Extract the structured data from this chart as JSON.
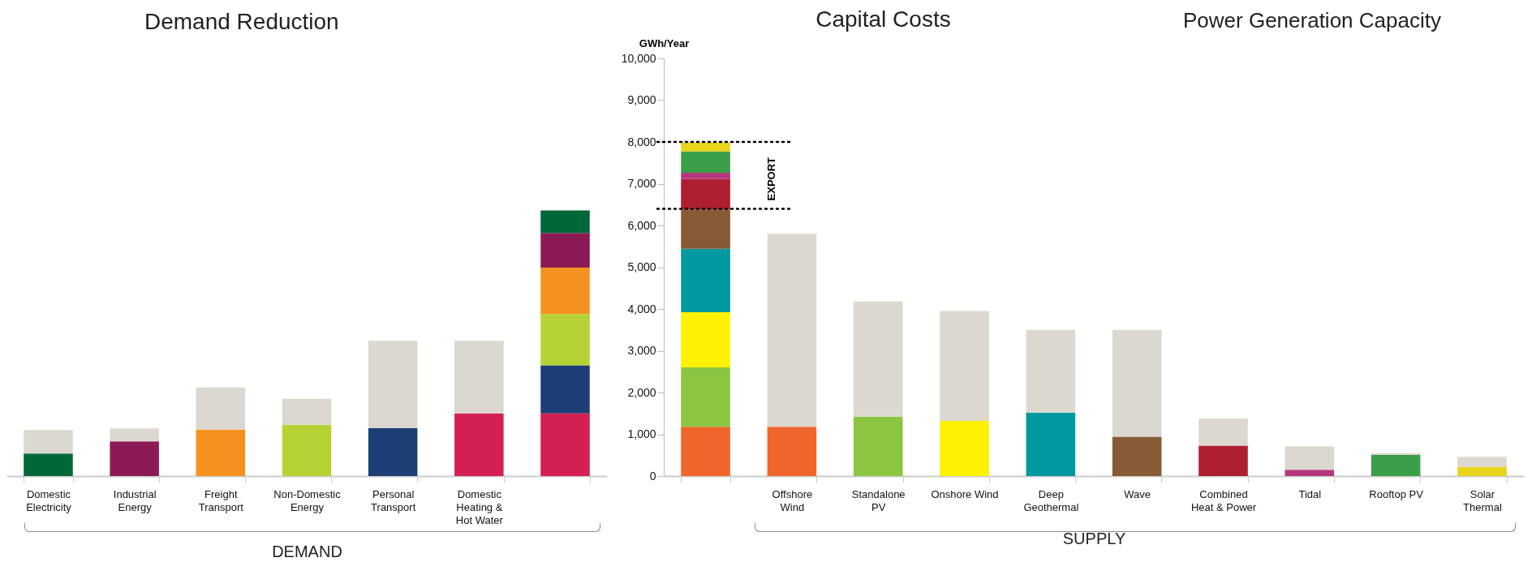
{
  "chart_data": [
    {
      "type": "bar",
      "title": "Demand Reduction",
      "xlabel": "DEMAND",
      "stacked": true,
      "tick_labels": "x",
      "grid": false,
      "categories": [
        "Domestic Electricity",
        "Industrial Energy",
        "Freight Transport",
        "Non-Domestic Energy",
        "Personal Transport",
        "Domestic Heating & Hot Water",
        null
      ],
      "ylim": [
        0,
        10000
      ],
      "series": [
        {
          "color": "#d41f52",
          "values": [
            null,
            null,
            null,
            null,
            null,
            1500,
            1500
          ]
        },
        {
          "color": "#1d3e75",
          "values": [
            null,
            null,
            null,
            null,
            1150,
            null,
            1150
          ]
        },
        {
          "color": "#b5d334",
          "values": [
            null,
            null,
            null,
            1230,
            null,
            null,
            1230
          ]
        },
        {
          "color": "#f5921f",
          "values": [
            null,
            null,
            1110,
            null,
            null,
            null,
            1110
          ]
        },
        {
          "color": "#8c1b55",
          "values": [
            null,
            830,
            null,
            null,
            null,
            null,
            830
          ]
        },
        {
          "color": "#006838",
          "values": [
            540,
            null,
            null,
            null,
            null,
            null,
            540
          ]
        },
        {
          "color": "#dcd8d0",
          "values": [
            560,
            310,
            1010,
            620,
            2090,
            1740,
            null
          ]
        }
      ]
    },
    {
      "type": "bar",
      "title": "Capital Costs",
      "xlabel": "SUPPLY",
      "ylabel": "GWh/Year",
      "stacked": true,
      "grid": false,
      "annotations": [
        "Power Generation Capacity"
      ],
      "categories": [
        null,
        "Offshore Wind",
        "Standalone PV",
        "Onshore Wind",
        "Deep Geothermal",
        "Wave",
        "Combined Heat & Power",
        "Tidal",
        "Rooftop PV",
        "Solar Thermal"
      ],
      "ylim": [
        0,
        10000
      ],
      "yticks": [
        0,
        {
          "value": 1000,
          "label": "1,000"
        },
        {
          "value": 2000,
          "label": "2,000"
        },
        {
          "value": 3000,
          "label": "3,000"
        },
        {
          "value": 4000,
          "label": "4,000"
        },
        {
          "value": 5000,
          "label": "5,000"
        },
        {
          "value": 6000,
          "label": "6,000"
        },
        {
          "value": 7000,
          "label": "7,000"
        },
        {
          "value": 8000,
          "label": "8,000"
        },
        {
          "value": 9000,
          "label": "9,000"
        },
        {
          "value": 10000,
          "label": "10,000"
        }
      ],
      "ref_lines": [
        {
          "axis": "y",
          "value": 8000,
          "line_style": "dotted"
        },
        {
          "axis": "y",
          "value": 6400,
          "line_style": "dotted",
          "label": "EXPORT"
        }
      ],
      "series": [
        {
          "color": "#f0662a",
          "values": [
            1180,
            1180,
            null,
            null,
            null,
            null,
            null,
            null,
            null,
            null
          ]
        },
        {
          "color": "#8cc540",
          "values": [
            1420,
            null,
            1420,
            null,
            null,
            null,
            null,
            null,
            null,
            null
          ]
        },
        {
          "color": "#fef200",
          "values": [
            1320,
            null,
            null,
            1320,
            null,
            null,
            null,
            null,
            null,
            null
          ]
        },
        {
          "color": "#0099a0",
          "values": [
            1520,
            null,
            null,
            null,
            1520,
            null,
            null,
            null,
            null,
            null
          ]
        },
        {
          "color": "#875b36",
          "values": [
            940,
            null,
            null,
            null,
            null,
            940,
            null,
            null,
            null,
            null
          ]
        },
        {
          "color": "#ae1f31",
          "values": [
            730,
            null,
            null,
            null,
            null,
            null,
            730,
            null,
            null,
            null
          ]
        },
        {
          "color": "#b5387e",
          "values": [
            150,
            null,
            null,
            null,
            null,
            null,
            null,
            150,
            null,
            null
          ]
        },
        {
          "color": "#3a9f48",
          "values": [
            510,
            null,
            null,
            null,
            null,
            null,
            null,
            null,
            510,
            null
          ]
        },
        {
          "color": "#e8d41a",
          "values": [
            220,
            null,
            null,
            null,
            null,
            null,
            null,
            null,
            null,
            220
          ]
        },
        {
          "color": "#dcd8d0",
          "values": [
            null,
            4620,
            2760,
            2630,
            1980,
            2560,
            650,
            560,
            40,
            240
          ]
        }
      ]
    }
  ]
}
